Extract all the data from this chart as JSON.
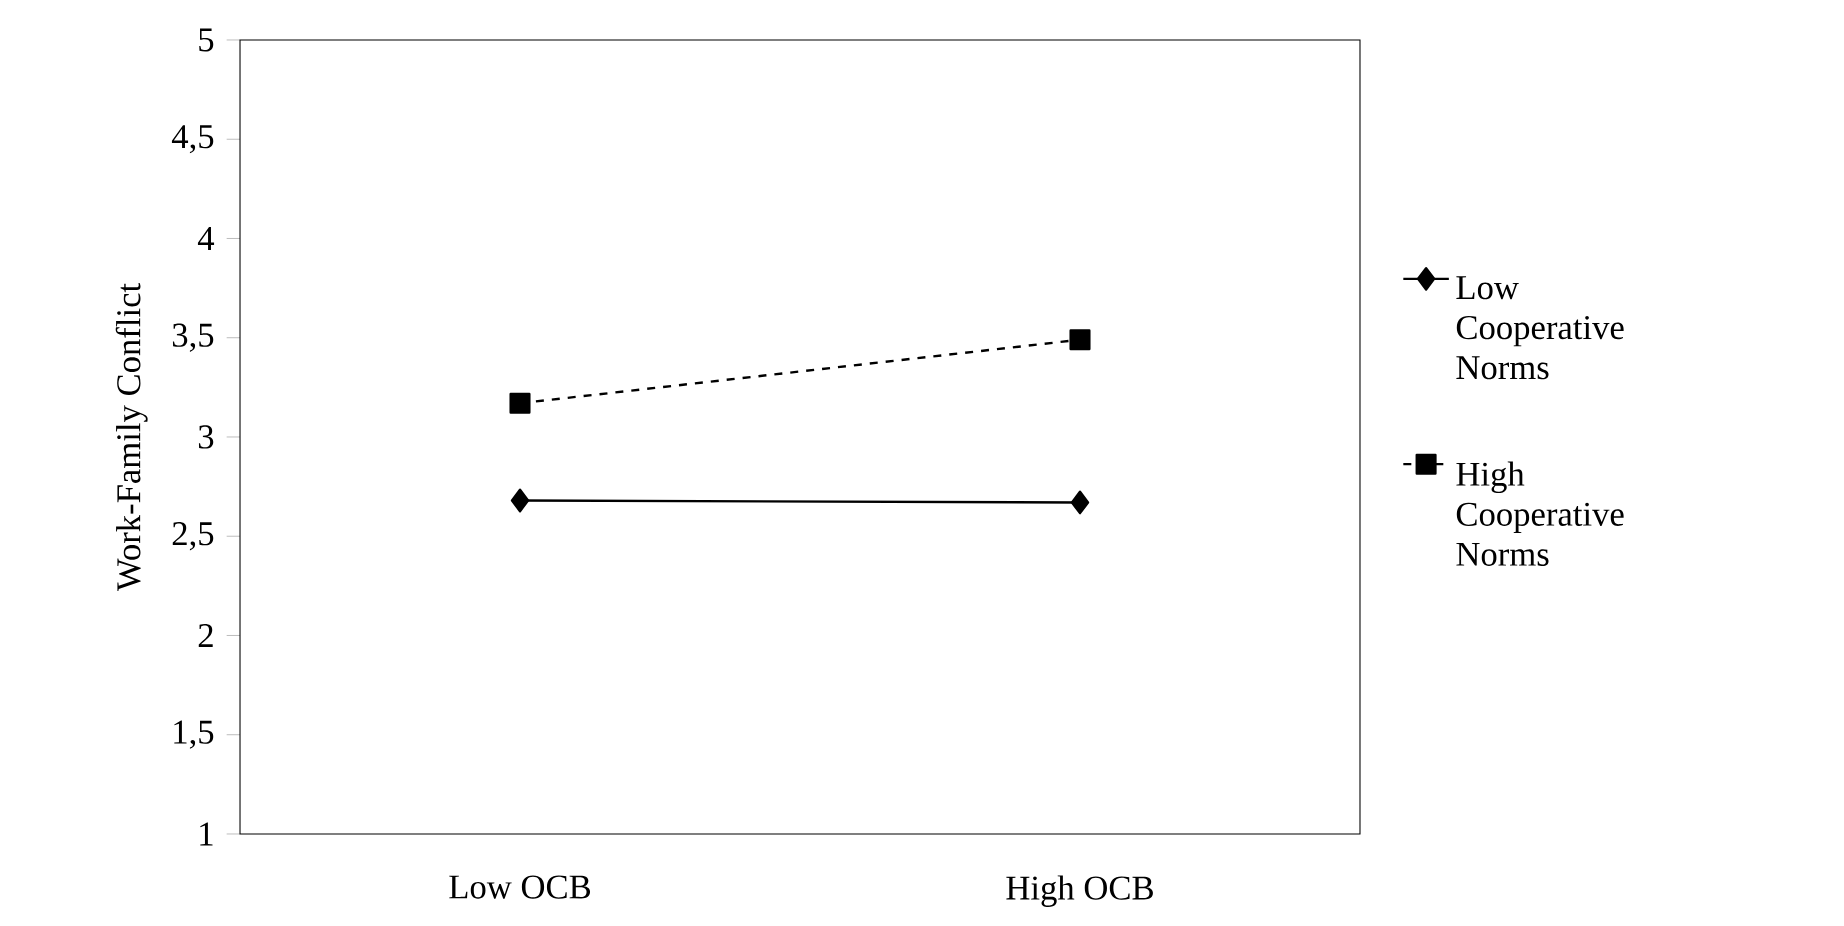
{
  "chart_data": {
    "type": "line",
    "ylabel": "Work-Family Conflict",
    "categories": [
      "Low OCB",
      "High OCB"
    ],
    "series": [
      {
        "name": "Low Cooperative Norms",
        "color": "#000000",
        "values": [
          2.68,
          2.67
        ],
        "marker": "diamond",
        "line_style": "solid"
      },
      {
        "name": "High Cooperative Norms",
        "color": "#000000",
        "values": [
          3.17,
          3.49
        ],
        "marker": "square",
        "line_style": "dashed"
      }
    ],
    "ylim": [
      1,
      5
    ],
    "yticks": [
      1,
      {
        "value": 1.5,
        "label": "1,5"
      },
      2,
      {
        "value": 2.5,
        "label": "2,5"
      },
      3,
      {
        "value": 3.5,
        "label": "3,5"
      },
      4,
      {
        "value": 4.5,
        "label": "4,5"
      },
      5
    ],
    "grid": false,
    "legend": "right"
  }
}
